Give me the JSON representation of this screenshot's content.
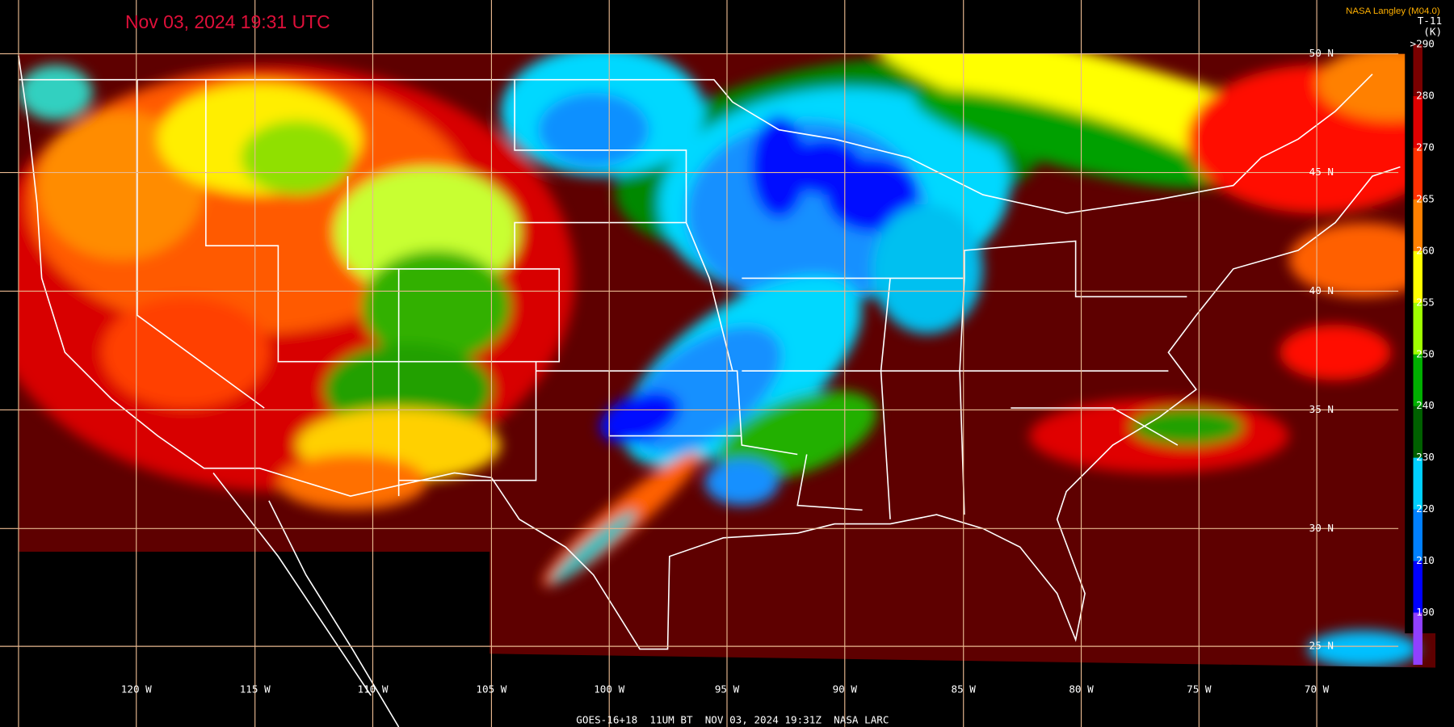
{
  "timestamp": "Nov 03, 2024 19:31 UTC",
  "credit": "NASA Langley (M04.0)",
  "product": "T-11",
  "unit": "(K)",
  "legend": [
    ">290",
    "280",
    "270",
    "265",
    "260",
    "255",
    "250",
    "240",
    "230",
    "220",
    "210",
    "190"
  ],
  "latitudes": [
    "50 N",
    "45 N",
    "40 N",
    "35 N",
    "30 N",
    "25 N"
  ],
  "longitudes": [
    "120 W",
    "115 W",
    "110 W",
    "105 W",
    "100 W",
    "95 W",
    "90 W",
    "85 W",
    "80 W",
    "75 W",
    "70 W"
  ],
  "footer": "GOES-16+18  11UM BT  NOV 03, 2024 19:31Z  NASA LARC"
}
